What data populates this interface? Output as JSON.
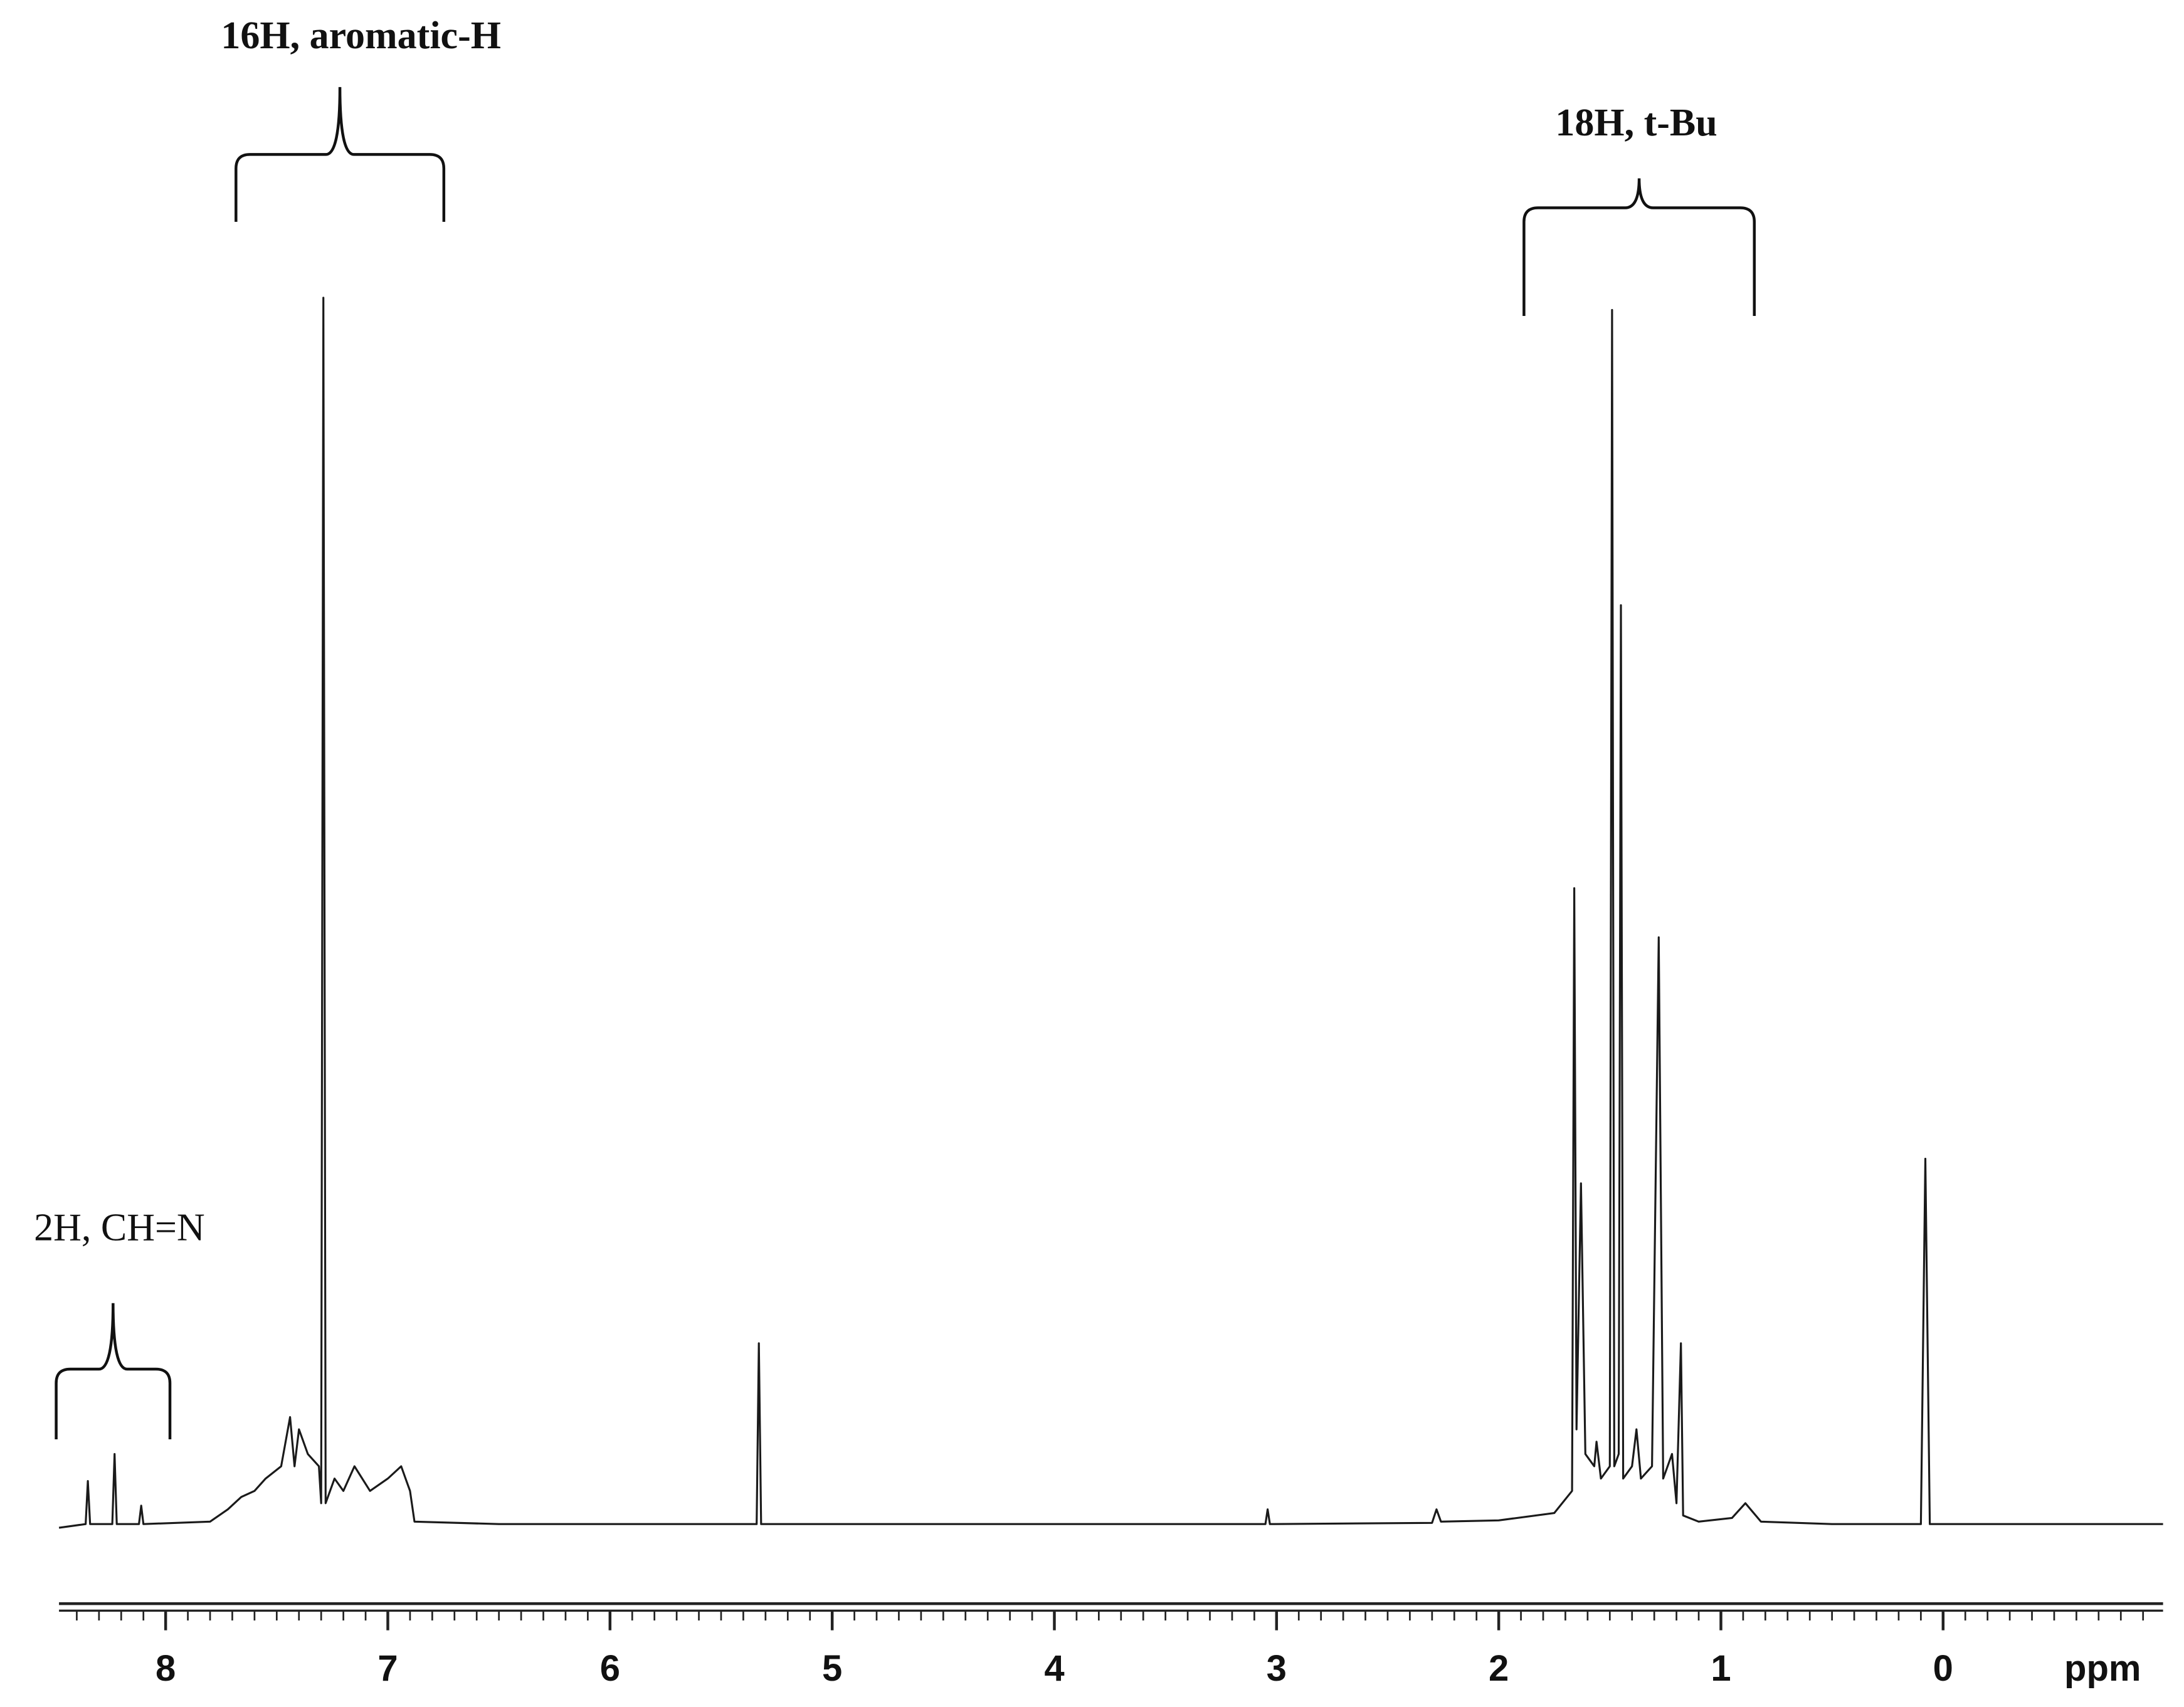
{
  "chart_data": {
    "type": "line",
    "x_label": "ppm",
    "annotations": [
      "16H, aromatic-H",
      "18H, t-Bu",
      "2H, CH=N"
    ],
    "xlim": [
      8.48,
      -0.99
    ],
    "ylim": [
      0,
      100
    ],
    "xticks": [
      8,
      7,
      6,
      5,
      4,
      3,
      2,
      1,
      0
    ],
    "xminor_step": 0.1,
    "color": "#1a1a1a",
    "x": [
      8.48,
      8.36,
      8.35,
      8.34,
      8.24,
      8.23,
      8.22,
      8.12,
      8.11,
      8.1,
      7.8,
      7.72,
      7.66,
      7.6,
      7.55,
      7.48,
      7.44,
      7.42,
      7.4,
      7.36,
      7.31,
      7.3,
      7.29,
      7.28,
      7.24,
      7.2,
      7.15,
      7.08,
      7.0,
      6.94,
      6.92,
      6.9,
      6.88,
      6.5,
      5.34,
      5.33,
      5.32,
      4.2,
      3.05,
      3.04,
      3.03,
      2.3,
      2.28,
      2.26,
      2.0,
      1.75,
      1.67,
      1.66,
      1.65,
      1.63,
      1.61,
      1.57,
      1.56,
      1.54,
      1.5,
      1.49,
      1.48,
      1.46,
      1.45,
      1.44,
      1.4,
      1.38,
      1.36,
      1.31,
      1.28,
      1.26,
      1.22,
      1.2,
      1.18,
      1.17,
      1.1,
      0.95,
      0.89,
      0.82,
      0.5,
      0.1,
      0.08,
      0.06,
      -0.99
    ],
    "values": [
      0,
      0.3,
      3.8,
      0.3,
      0.3,
      6,
      0.3,
      0.3,
      1.8,
      0.3,
      0.5,
      1.5,
      2.5,
      3,
      4,
      5,
      9,
      5,
      8,
      6,
      5,
      2,
      100,
      2,
      4,
      3,
      5,
      3,
      4,
      5,
      4,
      3,
      0.5,
      0.3,
      0.3,
      15,
      0.3,
      0.3,
      0.3,
      1.5,
      0.3,
      0.4,
      1.5,
      0.5,
      0.6,
      1.2,
      3,
      52,
      8,
      28,
      6,
      5,
      7,
      4,
      5,
      99,
      5,
      6,
      75,
      4,
      5,
      8,
      4,
      5,
      48,
      4,
      6,
      2,
      15,
      1,
      0.5,
      0.8,
      2,
      0.5,
      0.3,
      0.3,
      30,
      0.3,
      0.3
    ]
  }
}
